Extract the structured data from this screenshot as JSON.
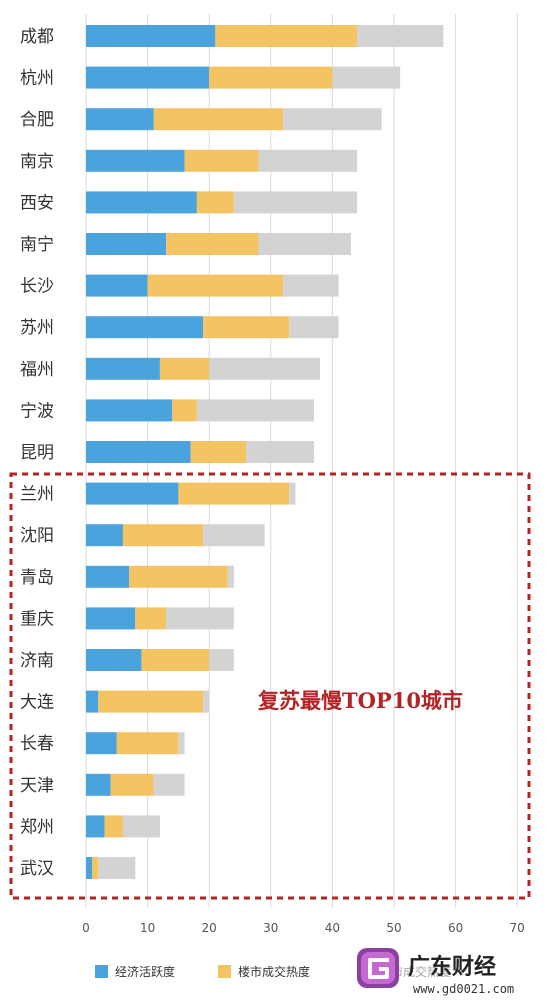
{
  "chart_data": {
    "type": "bar",
    "orientation": "horizontal",
    "stacked": true,
    "categories": [
      "成都",
      "杭州",
      "合肥",
      "南京",
      "西安",
      "南宁",
      "长沙",
      "苏州",
      "福州",
      "宁波",
      "昆明",
      "兰州",
      "沈阳",
      "青岛",
      "重庆",
      "济南",
      "大连",
      "长春",
      "天津",
      "郑州",
      "武汉"
    ],
    "series": [
      {
        "name": "经济活跃度",
        "color": "#4aa3dc",
        "values": [
          21,
          20,
          11,
          16,
          18,
          13,
          10,
          19,
          12,
          14,
          17,
          15,
          6,
          7,
          8,
          9,
          2,
          5,
          4,
          3,
          1
        ]
      },
      {
        "name": "楼市成交热度",
        "color": "#f5c462",
        "values": [
          23,
          20,
          21,
          12,
          6,
          15,
          22,
          14,
          8,
          4,
          9,
          18,
          13,
          16,
          5,
          11,
          17,
          10,
          7,
          3,
          1
        ]
      },
      {
        "name": "",
        "color": "#d3d3d3",
        "values": [
          14,
          11,
          16,
          16,
          20,
          15,
          9,
          8,
          18,
          19,
          11,
          1,
          10,
          1,
          11,
          4,
          1,
          1,
          5,
          6,
          6
        ]
      }
    ],
    "xticks": [
      "0",
      "10",
      "20",
      "30",
      "40",
      "50",
      "60",
      "70"
    ],
    "xlim": [
      0,
      70
    ],
    "grid": true,
    "legend_position": "bottom",
    "annotation": {
      "text": "复苏最慢TOP10城市",
      "range": [
        "兰州",
        "武汉"
      ],
      "color": "#b32424"
    },
    "title": "",
    "xlabel": "",
    "ylabel": ""
  },
  "watermark": {
    "text": "广东财经",
    "url": "www.gd0021.com",
    "icon": "logo-g-icon",
    "partial_text": "楼市成交热度"
  }
}
